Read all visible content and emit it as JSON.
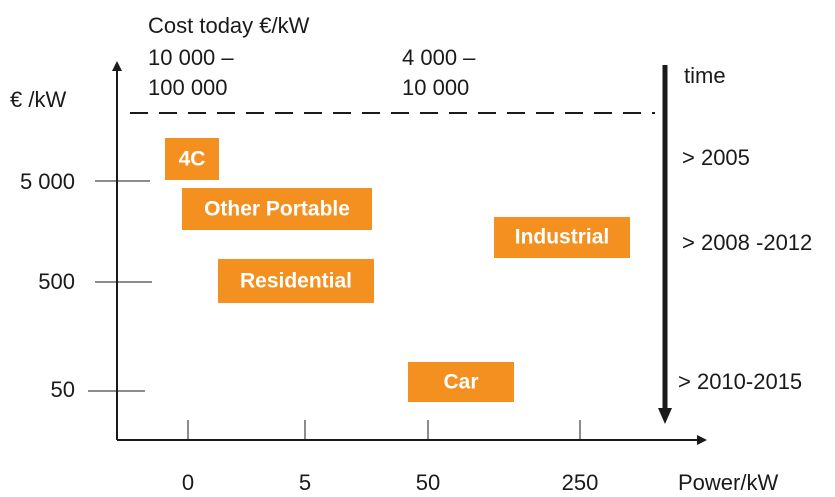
{
  "header": "Cost today €/kW",
  "cost_ranges": [
    [
      "10 000 –",
      "100 000"
    ],
    [
      "4 000 –",
      "10 000"
    ]
  ],
  "y_axis_label": "€ /kW",
  "y_ticks": [
    "5 000",
    "500",
    "50"
  ],
  "x_axis_label": "Power/kW",
  "x_ticks": [
    "0",
    "5",
    "50",
    "250"
  ],
  "boxes": [
    "4C",
    "Other Portable",
    "Residential",
    "Industrial",
    "Car"
  ],
  "time_label": "time",
  "time_marks": [
    "> 2005",
    "> 2008 -2012",
    "> 2010-2015"
  ]
}
